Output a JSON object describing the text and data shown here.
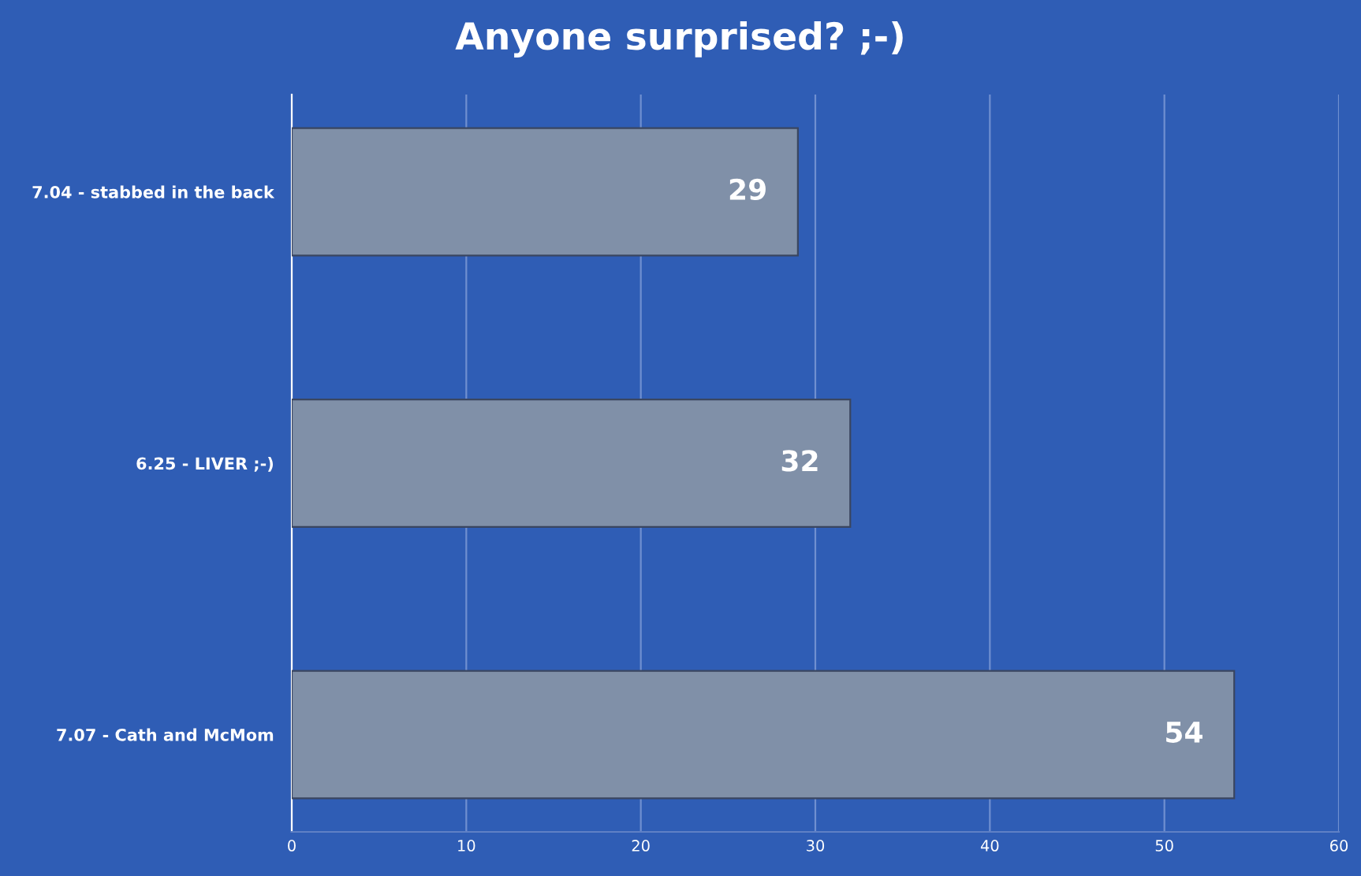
{
  "chart_data": {
    "type": "bar",
    "orientation": "horizontal",
    "title": "Anyone surprised? ;-)",
    "categories": [
      "7.04 - stabbed in the back",
      "6.25 - LIVER ;-)",
      "7.07 - Cath and McMom"
    ],
    "values": [
      29,
      32,
      54
    ],
    "color": "#8090a8",
    "xlim": [
      0,
      60
    ],
    "xticks": [
      0,
      10,
      20,
      30,
      40,
      50,
      60
    ],
    "grid": "x",
    "data_labels": true
  }
}
